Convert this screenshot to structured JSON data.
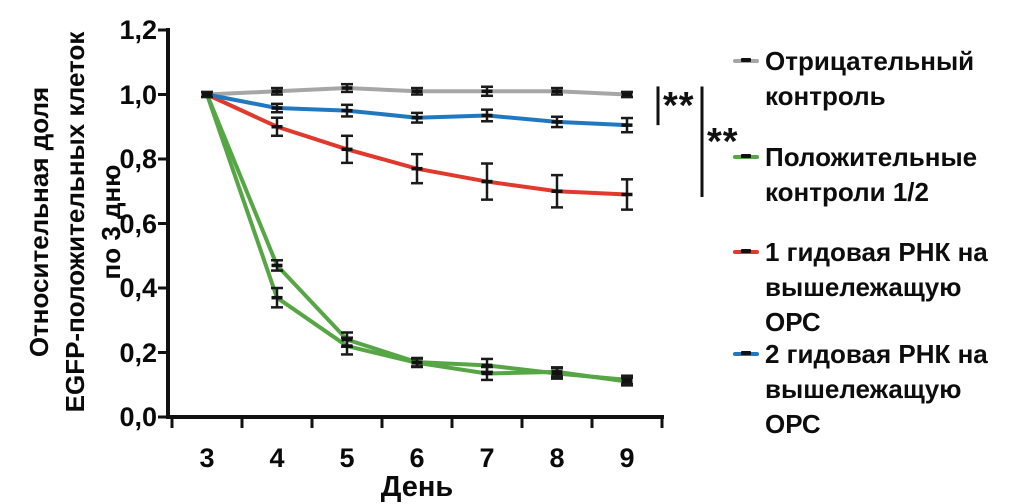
{
  "figure": {
    "background": "#ffffff",
    "text_color": "#0d0d0d"
  },
  "chart_data": {
    "type": "line",
    "title": "",
    "xlabel": "День",
    "ylabel": "Относительная доля\nEGFP-положительных клеток\nпо 3 дню",
    "x": [
      3,
      4,
      5,
      6,
      7,
      8,
      9
    ],
    "xtick_labels": [
      "3",
      "4",
      "5",
      "6",
      "7",
      "8",
      "9"
    ],
    "ylim": [
      0.0,
      1.2
    ],
    "ytick_step": 0.2,
    "ytick_labels": [
      "0,0",
      "0,2",
      "0,4",
      "0,6",
      "0,8",
      "1,0",
      "1,2"
    ],
    "grid": false,
    "error_bars": true,
    "marker_style": "black-dash",
    "legend_position": "right",
    "series": [
      {
        "name": "Отрицательный контроль",
        "color": "#a6a6a6",
        "values": [
          1.0,
          1.01,
          1.02,
          1.01,
          1.01,
          1.01,
          1.0
        ],
        "errors": [
          0.008,
          0.01,
          0.012,
          0.01,
          0.014,
          0.01,
          0.008
        ]
      },
      {
        "name": "Положительный контроль 1",
        "color": "#56a645",
        "values": [
          1.0,
          0.47,
          0.24,
          0.17,
          0.16,
          0.135,
          0.115
        ],
        "errors": [
          0,
          0.016,
          0.022,
          0.013,
          0.02,
          0.016,
          0.013
        ]
      },
      {
        "name": "Положительный контроль 2",
        "color": "#56a645",
        "values": [
          1.0,
          0.37,
          0.22,
          0.168,
          0.135,
          0.14,
          0.11
        ],
        "errors": [
          0,
          0.03,
          0.026,
          0.013,
          0.02,
          0.014,
          0.012
        ]
      },
      {
        "name": "1 гидовая РНК на вышележащую ОРС",
        "color": "#e0392d",
        "values": [
          1.0,
          0.9,
          0.83,
          0.77,
          0.73,
          0.7,
          0.69
        ],
        "errors": [
          0,
          0.028,
          0.042,
          0.045,
          0.056,
          0.05,
          0.047
        ]
      },
      {
        "name": "2 гидовая РНК на вышележащую ОРС",
        "color": "#2079c0",
        "values": [
          1.0,
          0.958,
          0.95,
          0.928,
          0.935,
          0.915,
          0.905
        ],
        "errors": [
          0,
          0.013,
          0.018,
          0.015,
          0.018,
          0.016,
          0.022
        ]
      }
    ],
    "legend_entries": [
      {
        "label": "Отрицательный контроль",
        "color": "#a6a6a6"
      },
      {
        "label": "Положительные контроли 1/2",
        "color": "#56a645"
      },
      {
        "label": "1 гидовая РНК на вышележащую ОРС",
        "color": "#e0392d"
      },
      {
        "label": "2 гидовая РНК на вышележащую ОРС",
        "color": "#2079c0"
      }
    ],
    "significance": [
      {
        "label": "**",
        "v_top": 1.025,
        "v_bottom": 0.905
      },
      {
        "label": "**",
        "v_top": 1.025,
        "v_bottom": 0.682
      }
    ]
  }
}
